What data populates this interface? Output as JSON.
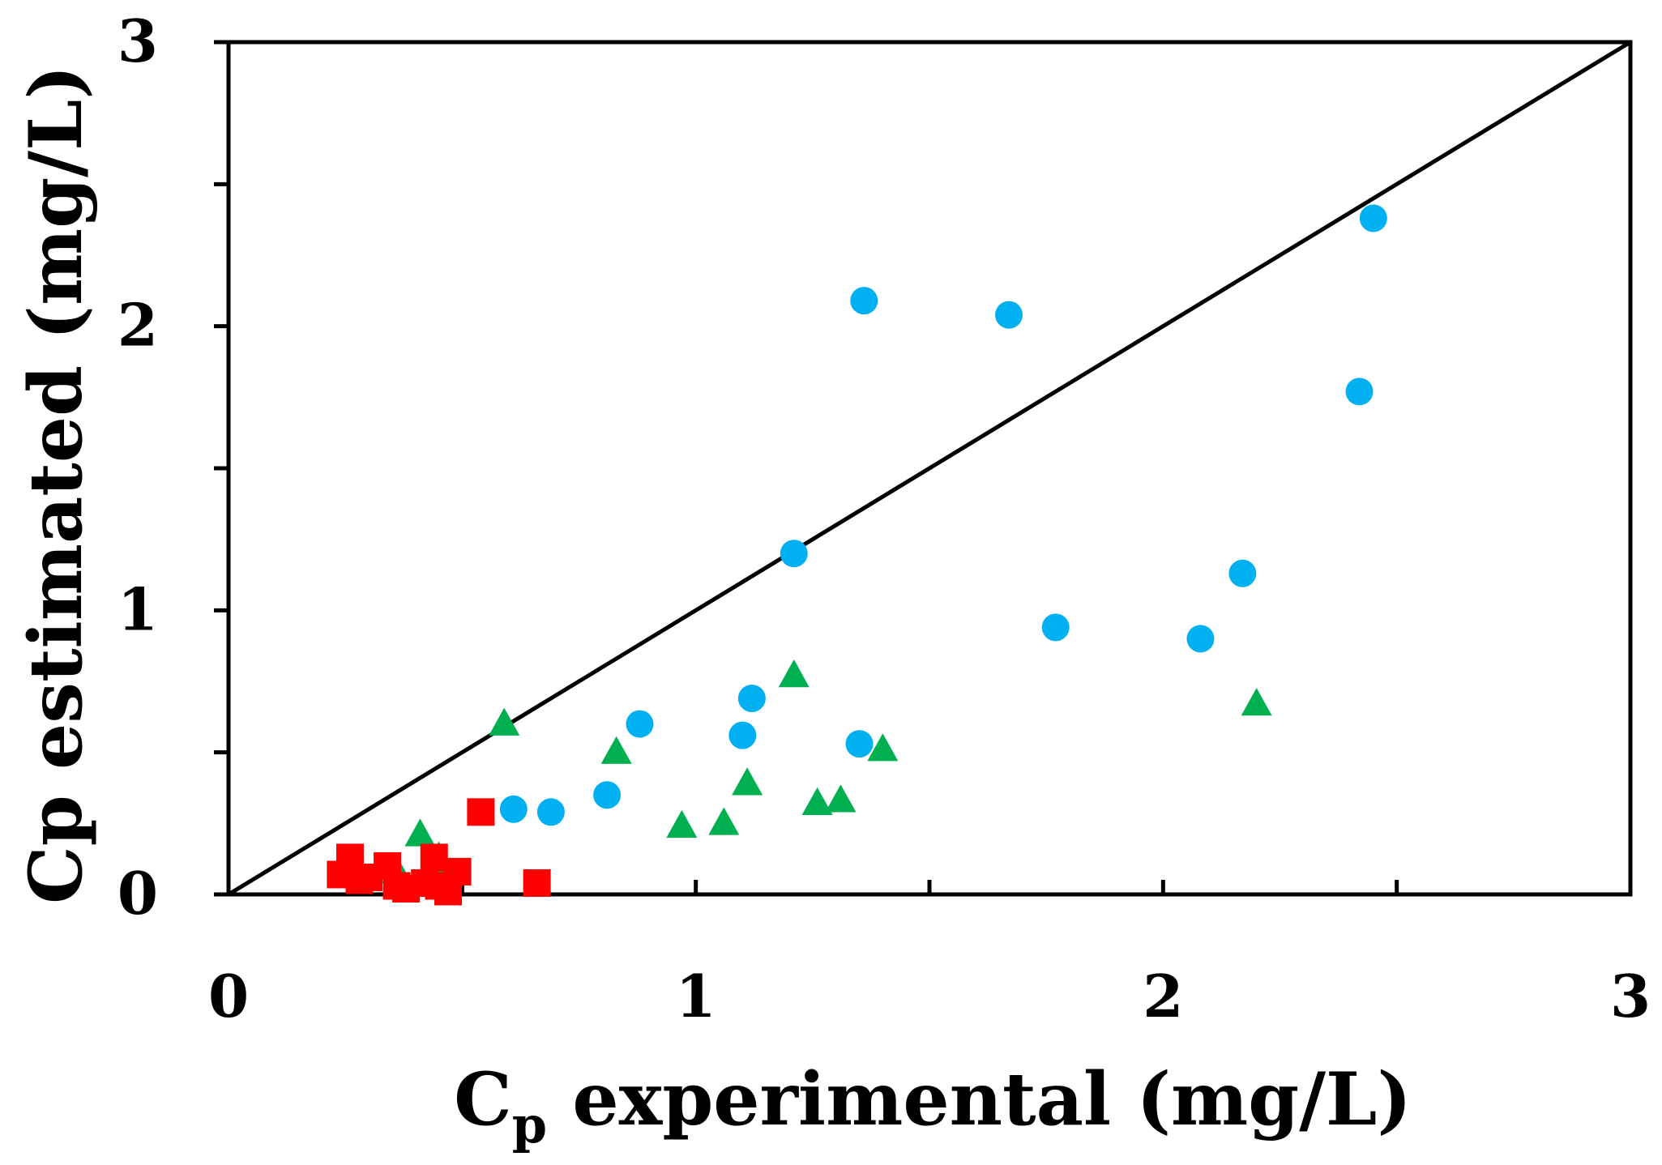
{
  "chart_data": {
    "type": "scatter",
    "title": "",
    "xlabel": "C",
    "xlabel_subscript": "p",
    "xlabel_rest": " experimental (mg/L)",
    "ylabel": "Cp estimated (mg/L)",
    "xlim": [
      0,
      3
    ],
    "ylim": [
      0,
      3
    ],
    "x_ticks": [
      0,
      1,
      2,
      3
    ],
    "x_minor_ticks": [
      0.5,
      1.5,
      2.5
    ],
    "y_ticks": [
      0,
      1,
      2,
      3
    ],
    "y_minor_ticks": [
      0.5,
      1.5,
      2.5
    ],
    "reference_line": {
      "name": "1:1 line",
      "x": [
        0,
        3
      ],
      "y": [
        0,
        3
      ]
    },
    "series": [
      {
        "name": "circles",
        "marker": "circle",
        "color": "#00b0f0",
        "points": [
          [
            0.61,
            0.3
          ],
          [
            0.69,
            0.29
          ],
          [
            0.81,
            0.35
          ],
          [
            0.88,
            0.6
          ],
          [
            1.1,
            0.56
          ],
          [
            1.12,
            0.69
          ],
          [
            1.21,
            1.2
          ],
          [
            1.35,
            0.53
          ],
          [
            1.36,
            2.09
          ],
          [
            1.67,
            2.04
          ],
          [
            1.77,
            0.94
          ],
          [
            2.08,
            0.9
          ],
          [
            2.17,
            1.13
          ],
          [
            2.42,
            1.77
          ],
          [
            2.45,
            2.38
          ]
        ]
      },
      {
        "name": "triangles",
        "marker": "triangle",
        "color": "#00b050",
        "points": [
          [
            0.36,
            0.08
          ],
          [
            0.41,
            0.21
          ],
          [
            0.45,
            0.13
          ],
          [
            0.45,
            0.09
          ],
          [
            0.59,
            0.6
          ],
          [
            0.83,
            0.5
          ],
          [
            0.97,
            0.24
          ],
          [
            1.06,
            0.25
          ],
          [
            1.11,
            0.39
          ],
          [
            1.21,
            0.77
          ],
          [
            1.26,
            0.32
          ],
          [
            1.31,
            0.33
          ],
          [
            1.4,
            0.51
          ],
          [
            2.2,
            0.67
          ]
        ]
      },
      {
        "name": "squares",
        "marker": "square",
        "color": "#ff0000",
        "points": [
          [
            0.24,
            0.07
          ],
          [
            0.26,
            0.13
          ],
          [
            0.28,
            0.05
          ],
          [
            0.3,
            0.06
          ],
          [
            0.34,
            0.1
          ],
          [
            0.36,
            0.03
          ],
          [
            0.38,
            0.02
          ],
          [
            0.42,
            0.04
          ],
          [
            0.44,
            0.13
          ],
          [
            0.45,
            0.03
          ],
          [
            0.47,
            0.01
          ],
          [
            0.49,
            0.08
          ],
          [
            0.54,
            0.29
          ],
          [
            0.66,
            0.04
          ]
        ]
      }
    ]
  }
}
